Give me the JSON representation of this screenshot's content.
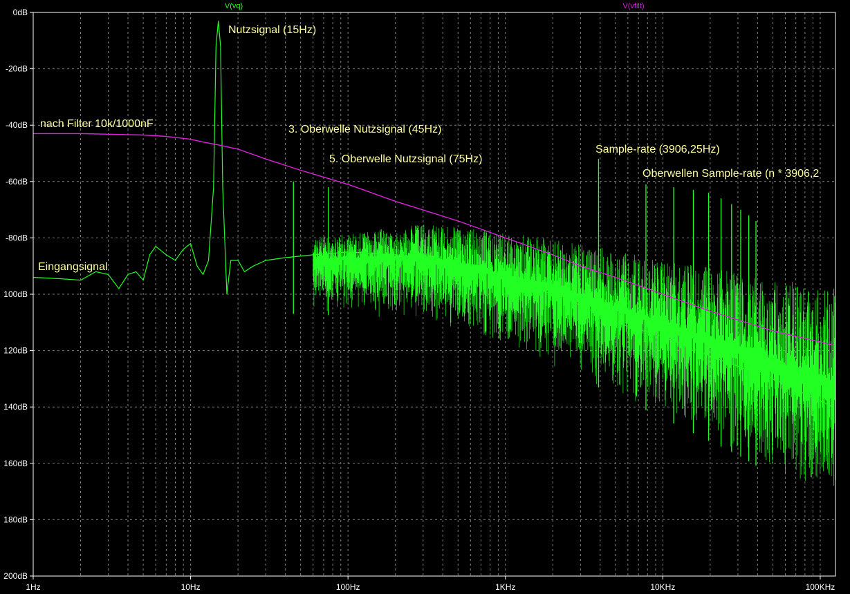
{
  "chart_data": {
    "type": "line",
    "x_scale": "log",
    "xlim_hz": [
      1,
      125000
    ],
    "ylim_db": [
      -200,
      0
    ],
    "grid": true,
    "x_tick_labels": [
      "1Hz",
      "10Hz",
      "100Hz",
      "1KHz",
      "10KHz",
      "100KHz"
    ],
    "y_tick_labels": [
      "0dB",
      "-20dB",
      "-40dB",
      "-60dB",
      "-80dB",
      "100dB",
      "120dB",
      "140dB",
      "160dB",
      "180dB",
      "200dB"
    ],
    "colors": {
      "background": "#000000",
      "grid": "#808080",
      "vq": "#22ff22",
      "vfilt": "#dd22dd",
      "annotation": "#ffffa0",
      "axis_text": "#ffffff"
    },
    "series": [
      {
        "name": "V(vq)",
        "color": "#22ff22",
        "x": [
          1,
          1.5,
          2,
          2.5,
          3,
          3.5,
          4,
          4.5,
          5,
          5.5,
          6,
          7,
          8,
          9,
          10,
          11,
          12,
          13,
          14,
          14.5,
          15,
          15.5,
          16,
          17,
          18,
          20,
          22,
          25,
          30,
          40,
          60,
          100,
          200,
          400,
          700,
          1000,
          2000,
          3000,
          5000,
          10000,
          20000,
          50000,
          120000
        ],
        "y": [
          -94,
          -94.5,
          -95,
          -92,
          -93,
          -98,
          -93,
          -92,
          -95,
          -86,
          -83,
          -86,
          -88,
          -84,
          -82,
          -90,
          -93,
          -88,
          -62,
          -12,
          -3,
          -12,
          -62,
          -100,
          -88,
          -88,
          -92,
          -90,
          -88,
          -87,
          -86,
          -85,
          -86,
          -88,
          -90,
          -94,
          -100,
          -104,
          -110,
          -115,
          -122,
          -130,
          -140
        ],
        "noise_floor_db": [
          [
            60,
            -95,
            -80
          ],
          [
            300,
            -98,
            -75
          ],
          [
            1000,
            -108,
            -78
          ],
          [
            3000,
            -118,
            -82
          ],
          [
            10000,
            -132,
            -88
          ],
          [
            30000,
            -145,
            -92
          ],
          [
            120000,
            -165,
            -98
          ]
        ],
        "spurs": [
          {
            "x": 45,
            "y": -60
          },
          {
            "x": 75,
            "y": -62
          },
          {
            "x": 3906.25,
            "y": -52
          },
          {
            "x": 7812.5,
            "y": -61
          },
          {
            "x": 11718.75,
            "y": -62
          },
          {
            "x": 15625,
            "y": -63
          },
          {
            "x": 19531,
            "y": -64
          },
          {
            "x": 23437,
            "y": -66
          },
          {
            "x": 27343,
            "y": -68
          },
          {
            "x": 31250,
            "y": -70
          },
          {
            "x": 35156,
            "y": -72
          },
          {
            "x": 39062,
            "y": -74
          }
        ]
      },
      {
        "name": "V(vfilt)",
        "color": "#dd22dd",
        "x": [
          1,
          2,
          3,
          5,
          7,
          10,
          12,
          15,
          20,
          30,
          50,
          100,
          200,
          500,
          1000,
          2000,
          3000,
          5000,
          10000,
          20000,
          50000,
          120000
        ],
        "y": [
          -43,
          -43,
          -43.2,
          -43.5,
          -44,
          -45,
          -46,
          -47,
          -48.5,
          -52,
          -56,
          -61,
          -67,
          -74,
          -80,
          -86,
          -90,
          -94,
          -100,
          -106,
          -113,
          -118
        ]
      }
    ],
    "annotations": [
      {
        "text": "Nutzsignal (15Hz)"
      },
      {
        "text": "nach Filter 10k/1000nF"
      },
      {
        "text": "3. Oberwelle Nutzsignal (45Hz)"
      },
      {
        "text": "5. Oberwelle Nutzsignal (75Hz)"
      },
      {
        "text": "Sample-rate (3906,25Hz)"
      },
      {
        "text": "Oberwellen Sample-rate (n * 3906,2"
      },
      {
        "text": "Eingangsignal"
      }
    ]
  }
}
